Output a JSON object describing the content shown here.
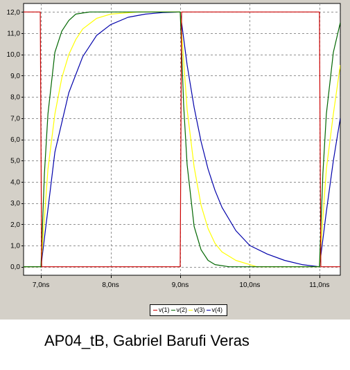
{
  "chart_data": {
    "type": "line",
    "x_unit": "ns",
    "xlim": [
      6.75,
      11.3
    ],
    "ylim": [
      -0.4,
      12.4
    ],
    "x_ticks": [
      7.0,
      8.0,
      9.0,
      10.0,
      11.0
    ],
    "x_tick_labels": [
      "7,0ns",
      "8,0ns",
      "9,0ns",
      "10,0ns",
      "11,0ns"
    ],
    "y_ticks": [
      0,
      1,
      2,
      3,
      4,
      5,
      6,
      7,
      8,
      9,
      10,
      11,
      12
    ],
    "y_tick_labels": [
      "0,0",
      "1,0",
      "2,0",
      "3,0",
      "4,0",
      "5,0",
      "6,0",
      "7,0",
      "8,0",
      "9,0",
      "10,0",
      "11,0",
      "12,0"
    ],
    "grid": true,
    "legend_position": "bottom-center",
    "series": [
      {
        "name": "v(1)",
        "color": "#cc0000",
        "x": [
          6.75,
          6.99,
          7.0,
          7.01,
          9.0,
          9.01,
          9.02,
          11.0,
          11.01,
          11.02,
          11.3
        ],
        "y": [
          12.0,
          12.0,
          6.0,
          0.0,
          0.0,
          6.0,
          12.0,
          12.0,
          6.0,
          0.0,
          0.0
        ]
      },
      {
        "name": "v(2)",
        "color": "#006600",
        "x": [
          6.75,
          7.0,
          7.05,
          7.1,
          7.2,
          7.3,
          7.4,
          7.5,
          7.7,
          9.0,
          9.05,
          9.1,
          9.2,
          9.3,
          9.4,
          9.5,
          9.7,
          11.0,
          11.05,
          11.1,
          11.2,
          11.3
        ],
        "y": [
          0.0,
          0.0,
          4.4,
          7.2,
          10.1,
          11.1,
          11.6,
          11.9,
          12.0,
          12.0,
          7.6,
          4.8,
          1.9,
          0.8,
          0.3,
          0.1,
          0.0,
          0.0,
          4.4,
          7.2,
          10.1,
          11.5
        ],
        "label": "v(2)"
      },
      {
        "name": "v(3)",
        "color": "#ffff00",
        "x": [
          6.75,
          7.0,
          7.1,
          7.2,
          7.3,
          7.4,
          7.5,
          7.6,
          7.8,
          8.0,
          8.4,
          9.0,
          9.1,
          9.2,
          9.3,
          9.4,
          9.5,
          9.6,
          9.8,
          10.1,
          11.0,
          11.1,
          11.2,
          11.3
        ],
        "y": [
          0.0,
          0.0,
          4.6,
          7.2,
          8.9,
          10.0,
          10.7,
          11.2,
          11.7,
          11.9,
          12.0,
          12.0,
          7.4,
          4.7,
          2.9,
          1.8,
          1.1,
          0.7,
          0.3,
          0.0,
          0.0,
          4.6,
          7.2,
          9.5
        ]
      },
      {
        "name": "v(4)",
        "color": "#0000aa",
        "x": [
          6.75,
          7.0,
          7.2,
          7.4,
          7.6,
          7.8,
          8.0,
          8.25,
          8.5,
          8.75,
          9.0,
          9.1,
          9.2,
          9.3,
          9.4,
          9.5,
          9.6,
          9.8,
          10.0,
          10.25,
          10.5,
          10.75,
          11.0,
          11.1,
          11.2,
          11.3
        ],
        "y": [
          0.0,
          0.0,
          5.4,
          8.2,
          9.9,
          10.9,
          11.4,
          11.75,
          11.9,
          11.97,
          12.0,
          9.5,
          7.5,
          5.9,
          4.6,
          3.6,
          2.8,
          1.7,
          1.0,
          0.6,
          0.3,
          0.1,
          0.0,
          2.6,
          5.0,
          7.0
        ]
      }
    ]
  },
  "legend": {
    "entries": [
      {
        "label": "v(1)",
        "color": "#cc0000"
      },
      {
        "label": "v(2)",
        "color": "#006600"
      },
      {
        "label": "v(3)",
        "color": "#ffff00"
      },
      {
        "label": "v(4)",
        "color": "#0000aa"
      }
    ]
  },
  "caption": "AP04_tB, Gabriel Barufi Veras"
}
